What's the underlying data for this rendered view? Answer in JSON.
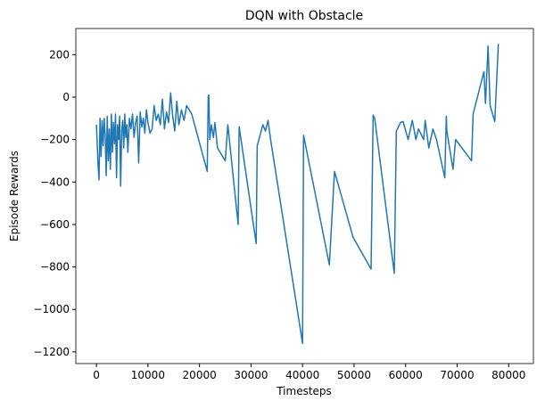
{
  "chart_data": {
    "type": "line",
    "title": "DQN with Obstacle",
    "x_label": "Timesteps",
    "y_label": "Episode Rewards",
    "series": [
      {
        "name": "reward",
        "color": "#1f77b4",
        "x": [
          0,
          300,
          500,
          700,
          900,
          1100,
          1300,
          1500,
          1700,
          1900,
          2100,
          2300,
          2500,
          2700,
          2900,
          3100,
          3300,
          3500,
          3700,
          3900,
          4100,
          4300,
          4500,
          4700,
          4900,
          5100,
          5300,
          5500,
          5700,
          5900,
          6100,
          6400,
          6700,
          7000,
          7300,
          7600,
          7900,
          8200,
          8500,
          8800,
          9100,
          9400,
          9700,
          10000,
          10400,
          10800,
          11200,
          11600,
          12000,
          12400,
          12800,
          13200,
          13600,
          14000,
          14400,
          14800,
          15200,
          15600,
          16000,
          16500,
          17000,
          17500,
          18500,
          21500,
          21700,
          21800,
          22000,
          22300,
          22700,
          23000,
          23500,
          25000,
          25500,
          27500,
          27700,
          31000,
          31200,
          32300,
          32800,
          33300,
          33800,
          40000,
          40200,
          45200,
          46200,
          49800,
          53300,
          53700,
          54000,
          57800,
          58200,
          59000,
          59500,
          60500,
          61300,
          62000,
          62500,
          63500,
          63800,
          64500,
          65300,
          66000,
          67600,
          67900,
          68000,
          69200,
          69700,
          72800,
          73100,
          75200,
          75500,
          76000,
          76400,
          77300,
          78000
        ],
        "values": [
          -130,
          -310,
          -390,
          -100,
          -280,
          -110,
          -230,
          -100,
          -180,
          -370,
          -90,
          -300,
          -150,
          -340,
          -80,
          -260,
          -120,
          -220,
          -80,
          -380,
          -130,
          -200,
          -90,
          -420,
          -160,
          -110,
          -240,
          -80,
          -190,
          -130,
          -260,
          -100,
          -150,
          -80,
          -190,
          -120,
          -90,
          -310,
          -70,
          -140,
          -100,
          -170,
          -60,
          -120,
          -170,
          -150,
          -40,
          -110,
          -80,
          -130,
          -10,
          -150,
          -70,
          -120,
          20,
          -90,
          -160,
          -20,
          -130,
          -60,
          -110,
          -40,
          -80,
          -350,
          5,
          10,
          -200,
          -130,
          -190,
          -120,
          -240,
          -300,
          -130,
          -600,
          -140,
          -690,
          -230,
          -130,
          -160,
          -110,
          -200,
          -1160,
          -180,
          -790,
          -350,
          -660,
          -810,
          -85,
          -100,
          -830,
          -160,
          -120,
          -115,
          -200,
          -110,
          -200,
          -150,
          -200,
          -110,
          -240,
          -150,
          -200,
          -380,
          -90,
          -160,
          -340,
          -200,
          -300,
          -80,
          120,
          -30,
          240,
          -40,
          -115,
          250
        ]
      }
    ],
    "xlim": [
      -4000,
      84800
    ],
    "ylim": [
      -1255,
      323
    ],
    "xticks": [
      0,
      10000,
      20000,
      30000,
      40000,
      50000,
      60000,
      70000,
      80000
    ],
    "yticks": [
      200,
      0,
      {
        "value": -200,
        "label": "−200"
      },
      {
        "value": -400,
        "label": "−400"
      },
      {
        "value": -600,
        "label": "−600"
      },
      {
        "value": -800,
        "label": "−800"
      },
      {
        "value": -1000,
        "label": "−1000"
      },
      {
        "value": -1200,
        "label": "−1200"
      }
    ]
  }
}
